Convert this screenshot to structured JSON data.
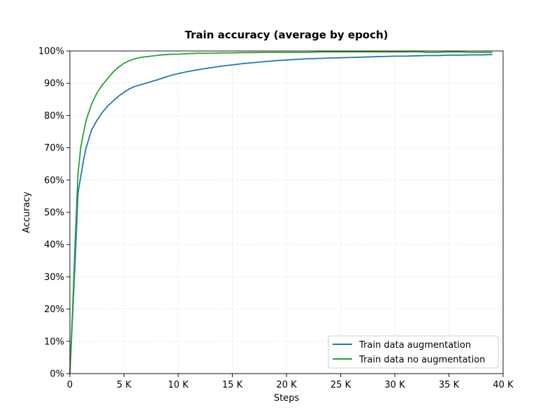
{
  "chart_data": {
    "type": "line",
    "title": "Train accuracy (average by epoch)",
    "xlabel": "Steps",
    "ylabel": "Accuracy",
    "xlim": [
      0,
      40000
    ],
    "ylim": [
      0,
      1.0
    ],
    "grid": true,
    "legend_position": "bottom-right",
    "x_ticks": [
      0,
      5000,
      10000,
      15000,
      20000,
      25000,
      30000,
      35000,
      40000
    ],
    "x_tick_labels": [
      "0",
      "5 K",
      "10 K",
      "15 K",
      "20 K",
      "25 K",
      "30 K",
      "35 K",
      "40 K"
    ],
    "y_ticks": [
      0,
      0.1,
      0.2,
      0.3,
      0.4,
      0.5,
      0.6,
      0.7,
      0.8,
      0.9,
      1.0
    ],
    "y_tick_labels": [
      "0%",
      "10%",
      "20%",
      "30%",
      "40%",
      "50%",
      "60%",
      "70%",
      "80%",
      "90%",
      "100%"
    ],
    "series": [
      {
        "name": "Train data augmentation",
        "color": "#1f77b4",
        "points": [
          [
            0,
            0.0
          ],
          [
            250,
            0.18
          ],
          [
            500,
            0.36
          ],
          [
            750,
            0.56
          ],
          [
            1000,
            0.61
          ],
          [
            1250,
            0.66
          ],
          [
            1500,
            0.7
          ],
          [
            2000,
            0.755
          ],
          [
            2500,
            0.785
          ],
          [
            3000,
            0.81
          ],
          [
            3500,
            0.83
          ],
          [
            4000,
            0.845
          ],
          [
            4500,
            0.86
          ],
          [
            5000,
            0.872
          ],
          [
            5500,
            0.883
          ],
          [
            6000,
            0.89
          ],
          [
            6500,
            0.895
          ],
          [
            7000,
            0.9
          ],
          [
            7500,
            0.905
          ],
          [
            8000,
            0.91
          ],
          [
            8500,
            0.915
          ],
          [
            9000,
            0.921
          ],
          [
            9500,
            0.926
          ],
          [
            10000,
            0.93
          ],
          [
            11000,
            0.937
          ],
          [
            12000,
            0.943
          ],
          [
            13000,
            0.948
          ],
          [
            14000,
            0.953
          ],
          [
            15000,
            0.957
          ],
          [
            16000,
            0.961
          ],
          [
            17000,
            0.964
          ],
          [
            18000,
            0.967
          ],
          [
            19000,
            0.97
          ],
          [
            20000,
            0.972
          ],
          [
            21000,
            0.974
          ],
          [
            22000,
            0.976
          ],
          [
            23000,
            0.977
          ],
          [
            24000,
            0.978
          ],
          [
            25000,
            0.979
          ],
          [
            26000,
            0.98
          ],
          [
            27000,
            0.981
          ],
          [
            28000,
            0.982
          ],
          [
            29000,
            0.983
          ],
          [
            30000,
            0.984
          ],
          [
            31000,
            0.984
          ],
          [
            32000,
            0.985
          ],
          [
            33000,
            0.986
          ],
          [
            34000,
            0.986
          ],
          [
            35000,
            0.987
          ],
          [
            36000,
            0.987
          ],
          [
            37000,
            0.988
          ],
          [
            38000,
            0.988
          ],
          [
            39000,
            0.989
          ]
        ]
      },
      {
        "name": "Train data no augmentation",
        "color": "#2ca02c",
        "points": [
          [
            0,
            0.0
          ],
          [
            250,
            0.2
          ],
          [
            500,
            0.42
          ],
          [
            750,
            0.62
          ],
          [
            1000,
            0.7
          ],
          [
            1250,
            0.745
          ],
          [
            1500,
            0.785
          ],
          [
            2000,
            0.835
          ],
          [
            2500,
            0.87
          ],
          [
            3000,
            0.895
          ],
          [
            3500,
            0.915
          ],
          [
            4000,
            0.935
          ],
          [
            4500,
            0.95
          ],
          [
            5000,
            0.962
          ],
          [
            5500,
            0.97
          ],
          [
            6000,
            0.976
          ],
          [
            6500,
            0.98
          ],
          [
            7000,
            0.982
          ],
          [
            7500,
            0.984
          ],
          [
            8000,
            0.986
          ],
          [
            8500,
            0.988
          ],
          [
            9000,
            0.989
          ],
          [
            9500,
            0.99
          ],
          [
            10000,
            0.99
          ],
          [
            11000,
            0.992
          ],
          [
            12000,
            0.993
          ],
          [
            13000,
            0.993
          ],
          [
            14000,
            0.994
          ],
          [
            15000,
            0.994
          ],
          [
            16000,
            0.995
          ],
          [
            17000,
            0.995
          ],
          [
            18000,
            0.996
          ],
          [
            19000,
            0.996
          ],
          [
            20000,
            0.996
          ],
          [
            21000,
            0.996
          ],
          [
            22000,
            0.996
          ],
          [
            23000,
            0.997
          ],
          [
            24000,
            0.997
          ],
          [
            25000,
            0.997
          ],
          [
            26000,
            0.997
          ],
          [
            27000,
            0.997
          ],
          [
            28000,
            0.997
          ],
          [
            29000,
            0.997
          ],
          [
            30000,
            0.997
          ],
          [
            31000,
            0.997
          ],
          [
            32000,
            0.998
          ],
          [
            33000,
            0.996
          ],
          [
            34000,
            0.996
          ],
          [
            35000,
            0.997
          ],
          [
            36000,
            0.997
          ],
          [
            37000,
            0.996
          ],
          [
            38000,
            0.996
          ],
          [
            39000,
            0.996
          ]
        ]
      }
    ]
  }
}
